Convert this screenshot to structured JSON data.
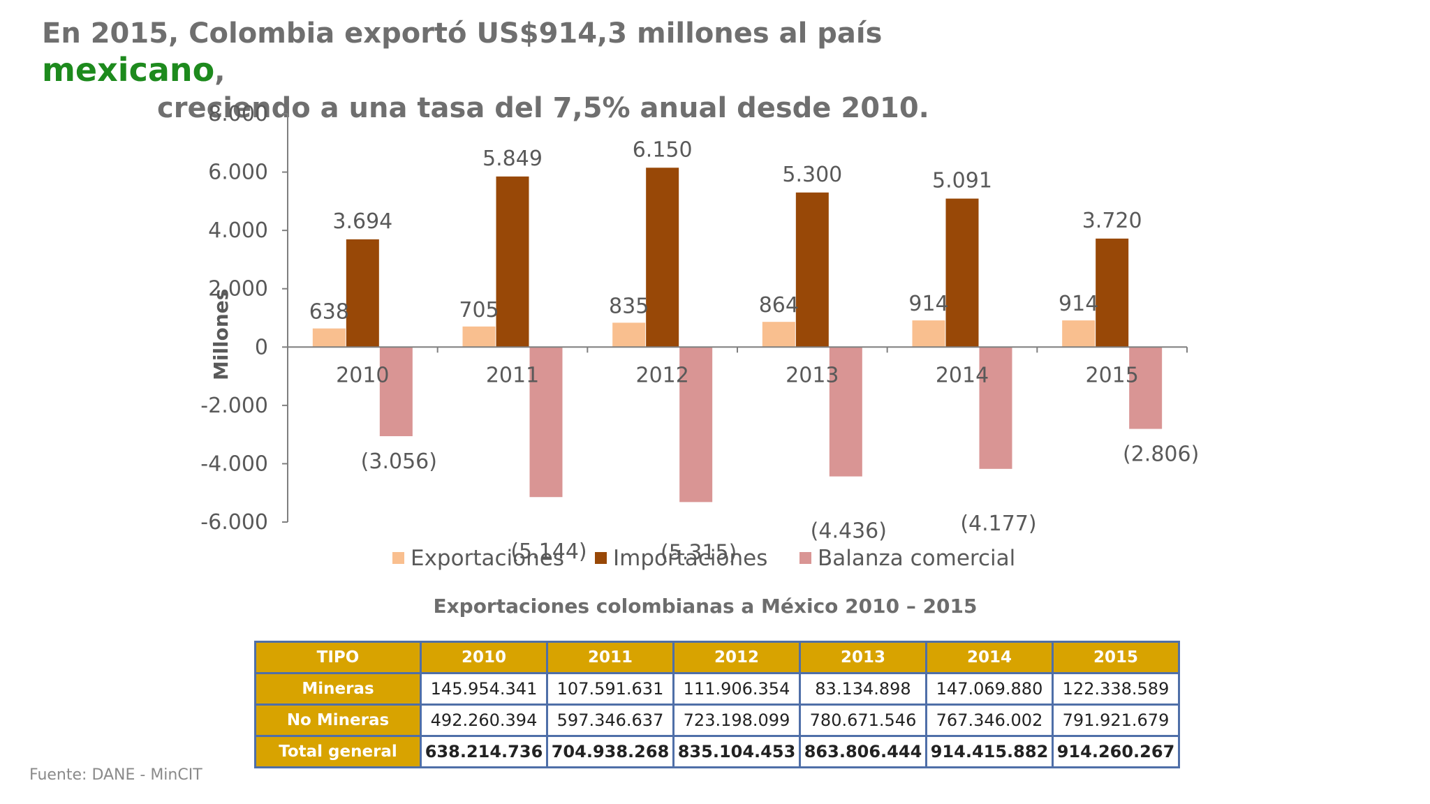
{
  "headline": {
    "part1": "En 2015, Colombia exportó US$914,3 millones al país ",
    "highlight": "mexicano",
    "part2": ",",
    "line2": "creciendo a una tasa del 7,5% anual desde 2010."
  },
  "colors": {
    "exportaciones": "#f9bf8f",
    "importaciones": "#984807",
    "balanza": "#d99594",
    "axis": "#7f7f7f",
    "text": "#595959",
    "highlight": "#1d8a1d",
    "table_header": "#d8a300",
    "table_border": "#4f6fa8"
  },
  "chart_data": {
    "type": "bar",
    "categories": [
      "2010",
      "2011",
      "2012",
      "2013",
      "2014",
      "2015"
    ],
    "series": [
      {
        "name": "Exportaciones",
        "values": [
          638,
          705,
          835,
          864,
          914,
          914
        ],
        "labels": [
          "638",
          "705",
          "835",
          "864",
          "914",
          "914"
        ]
      },
      {
        "name": "Importaciones",
        "values": [
          3694,
          5849,
          6150,
          5300,
          5091,
          3720
        ],
        "labels": [
          "3.694",
          "5.849",
          "6.150",
          "5.300",
          "5.091",
          "3.720"
        ]
      },
      {
        "name": "Balanza comercial",
        "values": [
          -3056,
          -5144,
          -5315,
          -4436,
          -4177,
          -2806
        ],
        "labels": [
          "(3.056)",
          "(5.144)",
          "(5.315)",
          "(4.436)",
          "(4.177)",
          "(2.806)"
        ]
      }
    ],
    "ylabel": "Millones",
    "ylim": [
      -6000,
      8000
    ],
    "yticks": [
      8000,
      6000,
      4000,
      2000,
      0,
      -2000,
      -4000,
      -6000
    ],
    "ytick_labels": [
      "8.000",
      "6.000",
      "4.000",
      "2.000",
      "0",
      "-2.000",
      "-4.000",
      "-6.000"
    ],
    "legend_position": "bottom",
    "grid": false
  },
  "table": {
    "title": "Exportaciones colombianas a México 2010 – 2015",
    "headers": [
      "TIPO",
      "2010",
      "2011",
      "2012",
      "2013",
      "2014",
      "2015"
    ],
    "rows": [
      {
        "label": "Mineras",
        "values": [
          "145.954.341",
          "107.591.631",
          "111.906.354",
          "83.134.898",
          "147.069.880",
          "122.338.589"
        ]
      },
      {
        "label": "No Mineras",
        "values": [
          "492.260.394",
          "597.346.637",
          "723.198.099",
          "780.671.546",
          "767.346.002",
          "791.921.679"
        ]
      },
      {
        "label": "Total general",
        "values": [
          "638.214.736",
          "704.938.268",
          "835.104.453",
          "863.806.444",
          "914.415.882",
          "914.260.267"
        ]
      }
    ]
  },
  "source": "Fuente: DANE - MinCIT"
}
